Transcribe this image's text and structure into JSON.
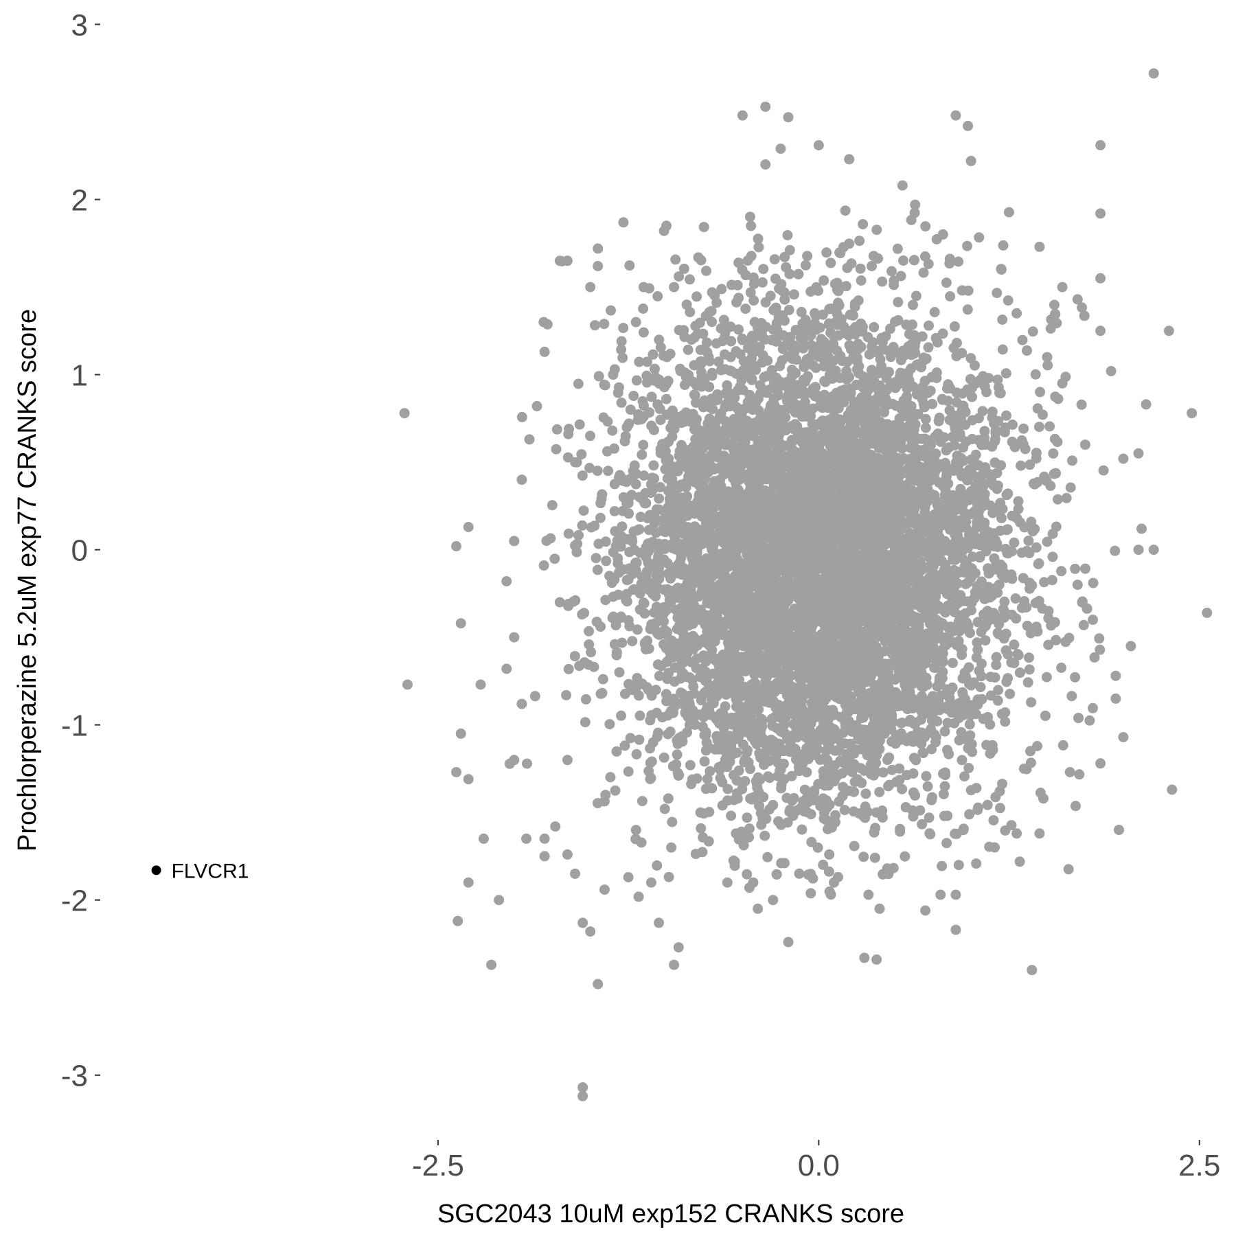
{
  "chart_data": {
    "type": "scatter",
    "xlabel": "SGC2043 10uM exp152 CRANKS score",
    "ylabel": "Prochlorperazine 5.2uM exp77 CRANKS score",
    "xlim": [
      -4.7,
      2.65
    ],
    "ylim": [
      -3.35,
      3.1
    ],
    "x_ticks": [
      -2.5,
      0.0,
      2.5
    ],
    "x_tick_labels": [
      "-2.5",
      "0.0",
      "2.5"
    ],
    "y_ticks": [
      -3,
      -2,
      -1,
      0,
      1,
      2,
      3
    ],
    "y_tick_labels": [
      "-3",
      "-2",
      "-1",
      "0",
      "1",
      "2",
      "3"
    ],
    "grid": false,
    "point_color": "#a0a0a0",
    "highlight_color": "#000000",
    "bulk_distribution": {
      "center": [
        0.0,
        -0.05
      ],
      "sd": [
        0.62,
        0.68
      ],
      "approx_points": 7000
    },
    "outliers": [
      [
        2.2,
        2.72
      ],
      [
        -0.5,
        2.48
      ],
      [
        -0.35,
        2.53
      ],
      [
        -0.2,
        2.47
      ],
      [
        0.9,
        2.48
      ],
      [
        0.98,
        2.42
      ],
      [
        -0.25,
        2.29
      ],
      [
        -0.35,
        2.2
      ],
      [
        0.0,
        2.31
      ],
      [
        0.2,
        2.23
      ],
      [
        1.0,
        2.22
      ],
      [
        1.85,
        2.31
      ],
      [
        1.85,
        1.92
      ],
      [
        0.55,
        2.08
      ],
      [
        -1.0,
        1.85
      ],
      [
        -1.65,
        1.65
      ],
      [
        -1.45,
        1.72
      ],
      [
        -1.45,
        1.62
      ],
      [
        -1.5,
        1.5
      ],
      [
        -1.15,
        1.5
      ],
      [
        -0.95,
        1.5
      ],
      [
        -0.7,
        1.47
      ],
      [
        1.45,
        1.73
      ],
      [
        1.85,
        1.55
      ],
      [
        1.6,
        1.5
      ],
      [
        1.7,
        1.43
      ],
      [
        1.85,
        1.25
      ],
      [
        1.92,
        1.02
      ],
      [
        2.3,
        1.25
      ],
      [
        2.45,
        0.78
      ],
      [
        2.15,
        0.83
      ],
      [
        2.0,
        0.52
      ],
      [
        2.1,
        0.55
      ],
      [
        2.12,
        0.12
      ],
      [
        2.1,
        0.0
      ],
      [
        2.2,
        0.0
      ],
      [
        2.55,
        -0.36
      ],
      [
        2.05,
        -0.55
      ],
      [
        1.95,
        -0.72
      ],
      [
        1.95,
        -0.85
      ],
      [
        2.0,
        -1.07
      ],
      [
        1.85,
        -1.22
      ],
      [
        2.32,
        -1.37
      ],
      [
        1.65,
        -1.27
      ],
      [
        1.4,
        -2.4
      ],
      [
        1.45,
        -1.62
      ],
      [
        1.3,
        -1.62
      ],
      [
        0.95,
        -1.6
      ],
      [
        0.92,
        -1.8
      ],
      [
        0.9,
        -1.97
      ],
      [
        0.9,
        -2.17
      ],
      [
        0.8,
        -1.97
      ],
      [
        0.7,
        -2.06
      ],
      [
        0.4,
        -2.05
      ],
      [
        0.45,
        -1.82
      ],
      [
        0.3,
        -2.33
      ],
      [
        0.38,
        -2.34
      ],
      [
        0.1,
        -1.9
      ],
      [
        -0.2,
        -2.24
      ],
      [
        -0.3,
        -2.0
      ],
      [
        -0.4,
        -2.05
      ],
      [
        -0.6,
        -1.9
      ],
      [
        -0.92,
        -2.27
      ],
      [
        -0.95,
        -2.37
      ],
      [
        -1.05,
        -2.13
      ],
      [
        -1.1,
        -1.9
      ],
      [
        -1.25,
        -1.87
      ],
      [
        -1.45,
        -2.48
      ],
      [
        -1.5,
        -2.18
      ],
      [
        -1.55,
        -2.13
      ],
      [
        -1.6,
        -1.85
      ],
      [
        -1.65,
        -1.74
      ],
      [
        -1.73,
        -1.58
      ],
      [
        -1.8,
        -1.65
      ],
      [
        -1.8,
        -1.75
      ],
      [
        -1.92,
        -1.65
      ],
      [
        -2.0,
        -1.2
      ],
      [
        -2.1,
        -2.0
      ],
      [
        -2.2,
        -1.65
      ],
      [
        -2.15,
        -2.37
      ],
      [
        -2.3,
        -1.9
      ],
      [
        -2.37,
        -2.12
      ],
      [
        -2.35,
        -1.05
      ],
      [
        -2.38,
        -1.27
      ],
      [
        -2.3,
        -1.31
      ],
      [
        -2.22,
        -0.77
      ],
      [
        -2.35,
        -0.42
      ],
      [
        -2.38,
        0.02
      ],
      [
        -2.3,
        0.13
      ],
      [
        -2.72,
        0.78
      ],
      [
        -2.7,
        -0.77
      ],
      [
        -1.55,
        -3.07
      ],
      [
        -1.55,
        -3.12
      ],
      [
        -1.85,
        0.82
      ],
      [
        -1.8,
        1.13
      ],
      [
        -1.7,
        1.65
      ],
      [
        -1.9,
        0.63
      ],
      [
        -1.95,
        0.4
      ],
      [
        -2.0,
        0.05
      ],
      [
        -2.05,
        -0.18
      ],
      [
        -2.0,
        -0.5
      ],
      [
        -2.05,
        -0.68
      ],
      [
        -1.95,
        -0.88
      ],
      [
        1.7,
        -0.2
      ],
      [
        1.8,
        -0.4
      ],
      [
        1.75,
        0.6
      ],
      [
        1.6,
        0.95
      ],
      [
        1.5,
        1.1
      ],
      [
        1.3,
        1.35
      ],
      [
        1.2,
        1.6
      ],
      [
        -1.2,
        1.3
      ],
      [
        -1.35,
        1.0
      ],
      [
        -1.6,
        0.5
      ],
      [
        -1.7,
        -0.3
      ],
      [
        -1.65,
        -1.2
      ],
      [
        -1.4,
        -1.4
      ],
      [
        -1.2,
        -1.6
      ]
    ],
    "highlighted_points": [
      {
        "label": "FLVCR1",
        "x": -4.35,
        "y": -1.83
      }
    ]
  }
}
